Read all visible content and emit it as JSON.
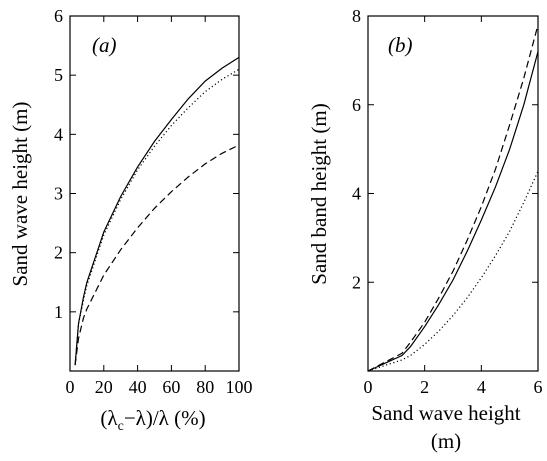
{
  "chart_data": [
    {
      "panel": "a",
      "type": "line",
      "panel_label": "(a)",
      "xlabel": "(λ_c−λ)/λ (%)",
      "ylabel": "Sand wave height (m)",
      "xlim": [
        0,
        100
      ],
      "ylim": [
        0,
        6
      ],
      "xticks": [
        0,
        20,
        40,
        60,
        80,
        100
      ],
      "yticks": [
        1,
        2,
        3,
        4,
        5,
        6
      ],
      "grid": false,
      "series": [
        {
          "style": "solid",
          "x": [
            3,
            5,
            8,
            10,
            20,
            30,
            40,
            50,
            60,
            70,
            80,
            90,
            100
          ],
          "y": [
            0.1,
            0.8,
            1.25,
            1.5,
            2.35,
            2.95,
            3.45,
            3.88,
            4.25,
            4.6,
            4.9,
            5.12,
            5.3
          ]
        },
        {
          "style": "dotted",
          "x": [
            3,
            5,
            8,
            10,
            20,
            30,
            40,
            50,
            60,
            70,
            80,
            90,
            100
          ],
          "y": [
            0.1,
            0.8,
            1.2,
            1.45,
            2.3,
            2.9,
            3.4,
            3.8,
            4.15,
            4.45,
            4.72,
            4.93,
            5.1
          ]
        },
        {
          "style": "dashed",
          "x": [
            3,
            5,
            8,
            10,
            20,
            30,
            40,
            50,
            60,
            70,
            80,
            90,
            100
          ],
          "y": [
            0.1,
            0.55,
            0.9,
            1.05,
            1.62,
            2.05,
            2.42,
            2.75,
            3.03,
            3.28,
            3.5,
            3.68,
            3.82
          ]
        }
      ]
    },
    {
      "panel": "b",
      "type": "line",
      "panel_label": "(b)",
      "xlabel_line1": "Sand wave height",
      "xlabel_line2": "(m)",
      "ylabel": "Sand band height (m)",
      "xlim": [
        0,
        6
      ],
      "ylim": [
        0,
        8
      ],
      "xticks": [
        0,
        2,
        4,
        6
      ],
      "yticks": [
        2,
        4,
        6,
        8
      ],
      "grid": false,
      "series": [
        {
          "style": "solid",
          "x": [
            0,
            1.2,
            1.5,
            2,
            2.5,
            3,
            3.5,
            4,
            4.5,
            5,
            5.5,
            6
          ],
          "y": [
            0,
            0.35,
            0.55,
            1.0,
            1.5,
            2.05,
            2.7,
            3.4,
            4.15,
            5.0,
            6.0,
            7.2
          ]
        },
        {
          "style": "dotted",
          "x": [
            0,
            1.2,
            1.5,
            2,
            2.5,
            3,
            3.5,
            4,
            4.5,
            5,
            5.5,
            6
          ],
          "y": [
            0,
            0.25,
            0.35,
            0.6,
            0.9,
            1.25,
            1.65,
            2.1,
            2.6,
            3.15,
            3.8,
            4.5
          ]
        },
        {
          "style": "dashed",
          "x": [
            0,
            1.2,
            1.5,
            2,
            2.5,
            3,
            3.5,
            4,
            4.5,
            5,
            5.5,
            6
          ],
          "y": [
            0,
            0.4,
            0.65,
            1.1,
            1.65,
            2.25,
            2.95,
            3.7,
            4.55,
            5.55,
            6.6,
            7.8
          ]
        }
      ]
    }
  ]
}
